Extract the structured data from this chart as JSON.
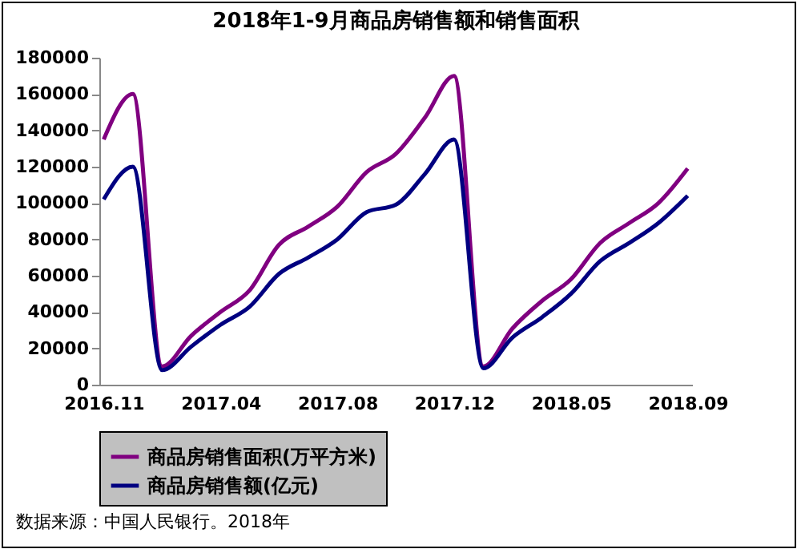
{
  "chart_data": {
    "type": "line",
    "title": "2018年1-9月商品房销售额和销售面积",
    "categories": [
      "2016.11",
      null,
      null,
      null,
      "2017.04",
      null,
      null,
      null,
      "2017.08",
      null,
      null,
      null,
      "2017.12",
      null,
      null,
      null,
      "2018.05",
      null,
      null,
      null,
      "2018.09"
    ],
    "series": [
      {
        "name": "商品房销售面积(万平方米)",
        "color": "#800080",
        "values": [
          135000,
          160000,
          10000,
          27000,
          40000,
          52000,
          77000,
          87000,
          98000,
          117000,
          127000,
          147000,
          170000,
          10000,
          31000,
          46000,
          58000,
          78000,
          89000,
          100000,
          119000
        ]
      },
      {
        "name": "商品房销售额(亿元)",
        "color": "#000080",
        "values": [
          102000,
          120000,
          8000,
          21000,
          33000,
          43000,
          61000,
          70000,
          80000,
          95000,
          99000,
          116000,
          135000,
          9000,
          26000,
          37000,
          50000,
          68000,
          78000,
          89000,
          104000
        ]
      }
    ],
    "ylim": [
      0,
      180000
    ],
    "yticks": [
      0,
      20000,
      40000,
      60000,
      80000,
      100000,
      120000,
      140000,
      160000,
      180000
    ],
    "grid": false,
    "legend": "bottom",
    "marker": "none",
    "line_style": "solid",
    "annotations": [
      "数据来源：中国人民银行。2018年"
    ]
  }
}
